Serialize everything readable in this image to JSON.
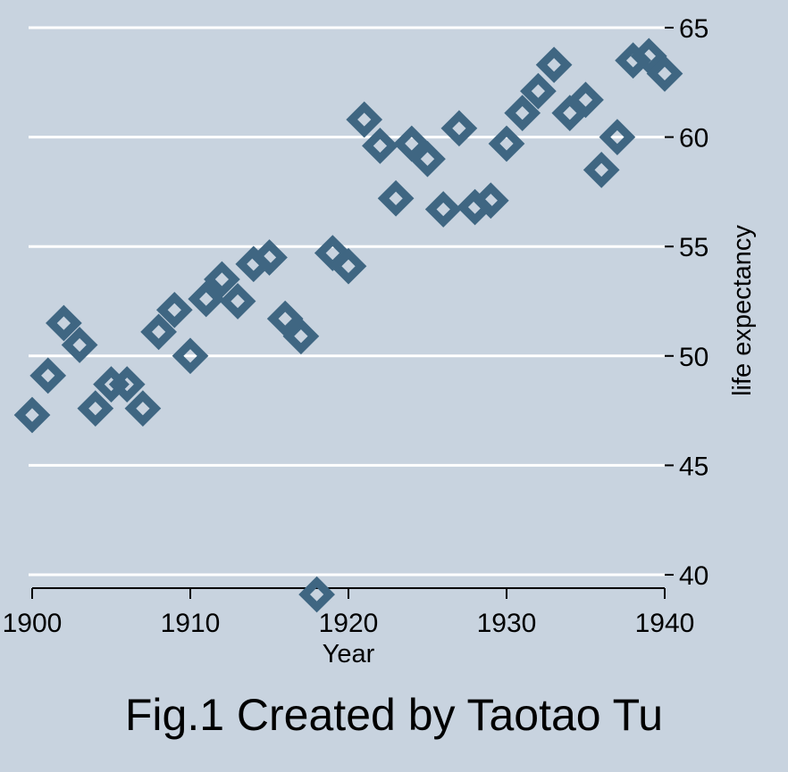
{
  "chart_data": {
    "type": "scatter",
    "xlabel": "Year",
    "ylabel": "life expectancy",
    "xlim": [
      1900,
      1940
    ],
    "ylim": [
      39,
      65
    ],
    "xticks": [
      1900,
      1910,
      1920,
      1930,
      1940
    ],
    "yticks": [
      40,
      45,
      50,
      55,
      60,
      65
    ],
    "xtick_labels": [
      "1900",
      "1910",
      "1920",
      "1930",
      "1940"
    ],
    "ytick_labels": [
      "40",
      "45",
      "50",
      "55",
      "60",
      "65"
    ],
    "grid": true,
    "y_axis_position": "right",
    "marker": "hollow-diamond",
    "marker_color": "#3f6682",
    "background_color": "#c8d3df",
    "series": [
      {
        "x": [
          1900,
          1901,
          1902,
          1903,
          1904,
          1905,
          1906,
          1907,
          1908,
          1909,
          1910,
          1911,
          1912,
          1913,
          1914,
          1915,
          1916,
          1917,
          1918,
          1919,
          1920,
          1921,
          1922,
          1923,
          1924,
          1925,
          1926,
          1927,
          1928,
          1929,
          1930,
          1931,
          1932,
          1933,
          1934,
          1935,
          1936,
          1937,
          1938,
          1939,
          1940
        ],
        "y": [
          47.3,
          49.1,
          51.5,
          50.5,
          47.6,
          48.7,
          48.7,
          47.6,
          51.1,
          52.1,
          50.0,
          52.6,
          53.5,
          52.5,
          54.2,
          54.5,
          51.7,
          50.9,
          39.1,
          54.7,
          54.1,
          60.8,
          59.6,
          57.2,
          59.7,
          59.0,
          56.7,
          60.4,
          56.8,
          57.1,
          59.7,
          61.1,
          62.1,
          63.3,
          61.1,
          61.7,
          58.5,
          60.0,
          63.5,
          63.7,
          62.9
        ]
      }
    ]
  },
  "caption": "Fig.1 Created by Taotao Tu"
}
